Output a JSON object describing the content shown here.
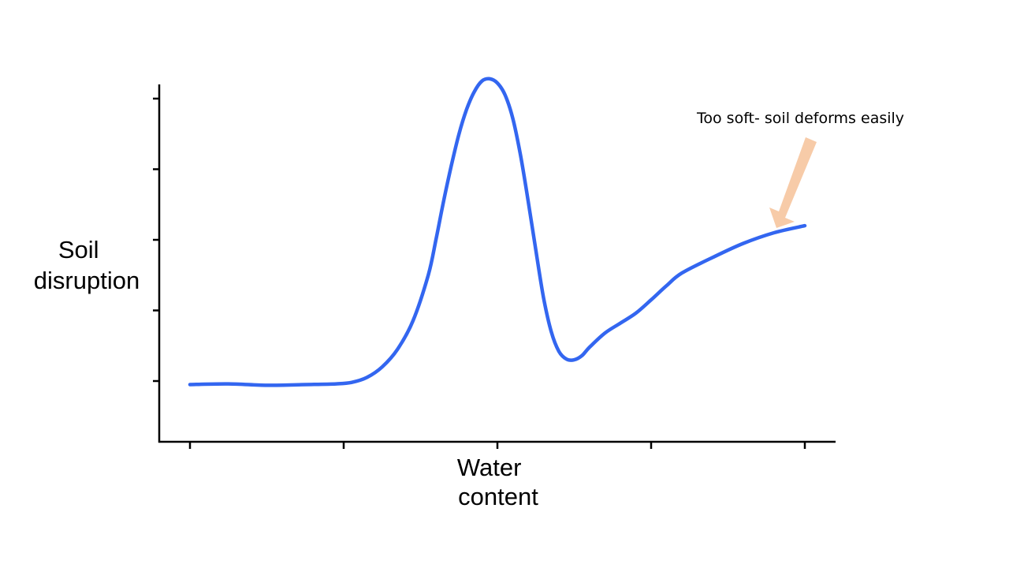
{
  "chart_data": {
    "type": "line",
    "title": "",
    "xlabel_lines": [
      "Water",
      "content"
    ],
    "ylabel_lines": [
      "Soil",
      "disruption"
    ],
    "xlim": [
      0,
      4.2
    ],
    "ylim": [
      -0.5,
      4.3
    ],
    "x_ticks": [
      0,
      1,
      2,
      3,
      4
    ],
    "y_ticks": [
      0,
      1,
      2,
      3,
      4
    ],
    "tick_labels_shown": false,
    "grid": false,
    "series": [
      {
        "color": "#3366f0",
        "x": [
          0,
          0.25,
          0.5,
          0.75,
          0.95,
          1.05,
          1.15,
          1.25,
          1.35,
          1.45,
          1.55,
          1.6,
          1.65,
          1.7,
          1.75,
          1.8,
          1.85,
          1.9,
          1.95,
          2.0,
          2.05,
          2.1,
          2.15,
          2.2,
          2.25,
          2.3,
          2.35,
          2.4,
          2.45,
          2.5,
          2.55,
          2.6,
          2.7,
          2.8,
          2.9,
          3.0,
          3.1,
          3.2,
          3.4,
          3.6,
          3.8,
          4.0
        ],
        "y": [
          -0.05,
          -0.04,
          -0.06,
          -0.05,
          -0.04,
          -0.02,
          0.05,
          0.2,
          0.45,
          0.85,
          1.5,
          2.0,
          2.55,
          3.05,
          3.5,
          3.85,
          4.1,
          4.25,
          4.28,
          4.22,
          4.05,
          3.72,
          3.2,
          2.55,
          1.85,
          1.18,
          0.7,
          0.42,
          0.31,
          0.3,
          0.36,
          0.48,
          0.68,
          0.82,
          0.96,
          1.15,
          1.35,
          1.53,
          1.75,
          1.95,
          2.1,
          2.2
        ]
      }
    ],
    "annotations": [
      {
        "text": "Too soft- soil deforms easily",
        "arrow_color": "#f7cba8",
        "points_to_x": 3.85
      }
    ]
  }
}
